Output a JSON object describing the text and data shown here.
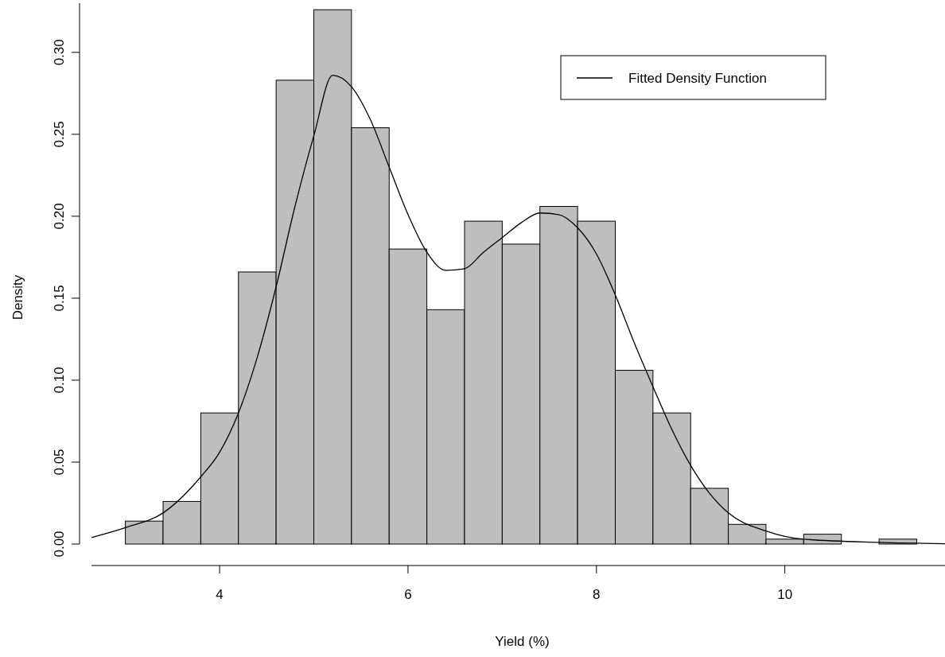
{
  "chart_data": {
    "type": "histogram",
    "xlabel": "Yield (%)",
    "ylabel": "Density",
    "color": "#bebebe",
    "bins": [
      3.0,
      3.4,
      3.8,
      4.2,
      4.6,
      5.0,
      5.4,
      5.8,
      6.2,
      6.6,
      7.0,
      7.4,
      7.8,
      8.2,
      8.6,
      9.0,
      9.4,
      9.8,
      10.2,
      10.6,
      11.0,
      11.4
    ],
    "values": [
      0.014,
      0.026,
      0.08,
      0.166,
      0.283,
      0.326,
      0.254,
      0.18,
      0.143,
      0.197,
      0.183,
      0.206,
      0.197,
      0.106,
      0.08,
      0.034,
      0.012,
      0.003,
      0.006,
      0,
      0.003
    ],
    "series": [
      {
        "type": "line",
        "name": "Fitted Density Function",
        "color": "#000000",
        "x": [
          2.64,
          3.0,
          3.4,
          3.8,
          4.0,
          4.2,
          4.4,
          4.6,
          4.8,
          5.0,
          5.2,
          5.4,
          5.6,
          5.8,
          6.0,
          6.2,
          6.4,
          6.6,
          6.8,
          7.0,
          7.2,
          7.4,
          7.6,
          7.8,
          8.0,
          8.2,
          8.4,
          8.6,
          8.8,
          9.0,
          9.2,
          9.4,
          9.8,
          10.2,
          11.0,
          11.7
        ],
        "values": [
          0.004,
          0.01,
          0.019,
          0.041,
          0.056,
          0.08,
          0.114,
          0.157,
          0.206,
          0.249,
          0.286,
          0.279,
          0.259,
          0.23,
          0.201,
          0.178,
          0.167,
          0.168,
          0.178,
          0.187,
          0.196,
          0.202,
          0.201,
          0.193,
          0.177,
          0.152,
          0.123,
          0.096,
          0.07,
          0.048,
          0.031,
          0.019,
          0.008,
          0.003,
          0.001,
          0.0002
        ]
      }
    ],
    "xlim": [
      2.64,
      11.7
    ],
    "ylim": [
      0,
      0.33
    ],
    "xticks": [
      4,
      6,
      8,
      10
    ],
    "yticks": [
      {
        "value": 0,
        "label": "0.00"
      },
      {
        "value": 0.05,
        "label": "0.05"
      },
      {
        "value": 0.1,
        "label": "0.10"
      },
      {
        "value": 0.15,
        "label": "0.15"
      },
      {
        "value": 0.2,
        "label": "0.20"
      },
      {
        "value": 0.25,
        "label": "0.25"
      },
      {
        "value": 0.3,
        "label": "0.30"
      }
    ],
    "legend": "top right",
    "line_style": "solid"
  }
}
